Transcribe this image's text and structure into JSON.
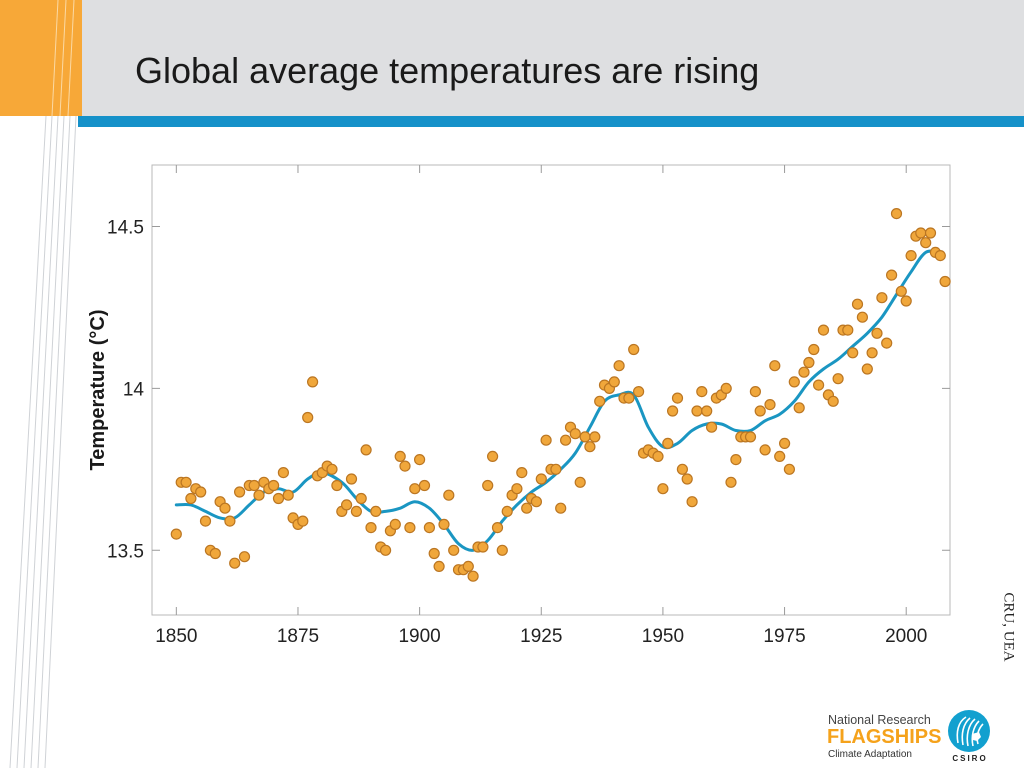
{
  "slide": {
    "title": "Global average temperatures are rising",
    "credit": "CRU, UEA",
    "colors": {
      "header_band": "#dedfe1",
      "orange_accent": "#f7a838",
      "blue_rule": "#1591c9"
    }
  },
  "logo": {
    "line1": "National Research",
    "line2": "FLAGSHIPS",
    "line3": "Climate Adaptation",
    "brand": "CSIRO",
    "icon": "csiro-globe-icon"
  },
  "chart_data": {
    "type": "scatter",
    "title": "",
    "xlabel": "",
    "ylabel": "Temperature (°C)",
    "xlim": [
      1845,
      2009
    ],
    "ylim": [
      13.3,
      14.69
    ],
    "xticks": [
      1850,
      1875,
      1900,
      1925,
      1950,
      1975,
      2000
    ],
    "yticks": [
      13.5,
      14,
      14.5
    ],
    "ytick_labels": [
      "13.5",
      "14",
      "14.5"
    ],
    "grid": false,
    "colors": {
      "points": "#f0a73b",
      "point_edge": "#bb7622",
      "smooth": "#1a96c2"
    },
    "series": [
      {
        "kind": "points",
        "x": [
          1850,
          1851,
          1852,
          1853,
          1854,
          1855,
          1856,
          1857,
          1858,
          1859,
          1860,
          1861,
          1862,
          1863,
          1864,
          1865,
          1866,
          1867,
          1868,
          1869,
          1870,
          1871,
          1872,
          1873,
          1874,
          1875,
          1876,
          1877,
          1878,
          1879,
          1880,
          1881,
          1882,
          1883,
          1884,
          1885,
          1886,
          1887,
          1888,
          1889,
          1890,
          1891,
          1892,
          1893,
          1894,
          1895,
          1896,
          1897,
          1898,
          1899,
          1900,
          1901,
          1902,
          1903,
          1904,
          1905,
          1906,
          1907,
          1908,
          1909,
          1910,
          1911,
          1912,
          1913,
          1914,
          1915,
          1916,
          1917,
          1918,
          1919,
          1920,
          1921,
          1922,
          1923,
          1924,
          1925,
          1926,
          1927,
          1928,
          1929,
          1930,
          1931,
          1932,
          1933,
          1934,
          1935,
          1936,
          1937,
          1938,
          1939,
          1940,
          1941,
          1942,
          1943,
          1944,
          1945,
          1946,
          1947,
          1948,
          1949,
          1950,
          1951,
          1952,
          1953,
          1954,
          1955,
          1956,
          1957,
          1958,
          1959,
          1960,
          1961,
          1962,
          1963,
          1964,
          1965,
          1966,
          1967,
          1968,
          1969,
          1970,
          1971,
          1972,
          1973,
          1974,
          1975,
          1976,
          1977,
          1978,
          1979,
          1980,
          1981,
          1982,
          1983,
          1984,
          1985,
          1986,
          1987,
          1988,
          1989,
          1990,
          1991,
          1992,
          1993,
          1994,
          1995,
          1996,
          1997,
          1998,
          1999,
          2000,
          2001,
          2002,
          2003,
          2004,
          2005,
          2006,
          2007,
          2008
        ],
        "y": [
          13.55,
          13.71,
          13.71,
          13.66,
          13.69,
          13.68,
          13.59,
          13.5,
          13.49,
          13.65,
          13.63,
          13.59,
          13.46,
          13.68,
          13.48,
          13.7,
          13.7,
          13.67,
          13.71,
          13.69,
          13.7,
          13.66,
          13.74,
          13.67,
          13.6,
          13.58,
          13.59,
          13.91,
          14.02,
          13.73,
          13.74,
          13.76,
          13.75,
          13.7,
          13.62,
          13.64,
          13.72,
          13.62,
          13.66,
          13.81,
          13.57,
          13.62,
          13.51,
          13.5,
          13.56,
          13.58,
          13.79,
          13.76,
          13.57,
          13.69,
          13.78,
          13.7,
          13.57,
          13.49,
          13.45,
          13.58,
          13.67,
          13.5,
          13.44,
          13.44,
          13.45,
          13.42,
          13.51,
          13.51,
          13.7,
          13.79,
          13.57,
          13.5,
          13.62,
          13.67,
          13.69,
          13.74,
          13.63,
          13.66,
          13.65,
          13.72,
          13.84,
          13.75,
          13.75,
          13.63,
          13.84,
          13.88,
          13.86,
          13.71,
          13.85,
          13.82,
          13.85,
          13.96,
          14.01,
          14.0,
          14.02,
          14.07,
          13.97,
          13.97,
          14.12,
          13.99,
          13.8,
          13.81,
          13.8,
          13.79,
          13.69,
          13.83,
          13.93,
          13.97,
          13.75,
          13.72,
          13.65,
          13.93,
          13.99,
          13.93,
          13.88,
          13.97,
          13.98,
          14.0,
          13.71,
          13.78,
          13.85,
          13.85,
          13.85,
          13.99,
          13.93,
          13.81,
          13.95,
          14.07,
          13.79,
          13.83,
          13.75,
          14.02,
          13.94,
          14.05,
          14.08,
          14.12,
          14.01,
          14.18,
          13.98,
          13.96,
          14.03,
          14.18,
          14.18,
          14.11,
          14.26,
          14.22,
          14.06,
          14.11,
          14.17,
          14.28,
          14.14,
          14.35,
          14.54,
          14.3,
          14.27,
          14.41,
          14.47,
          14.48,
          14.45,
          14.48,
          14.42,
          14.41,
          14.33
        ]
      },
      {
        "kind": "smooth",
        "x": [
          1850,
          1853,
          1856,
          1859,
          1862,
          1865,
          1868,
          1871,
          1874,
          1877,
          1880,
          1884,
          1887,
          1890,
          1893,
          1896,
          1899,
          1902,
          1905,
          1908,
          1911,
          1914,
          1917,
          1920,
          1923,
          1926,
          1929,
          1932,
          1935,
          1938,
          1941,
          1944,
          1947,
          1950,
          1953,
          1956,
          1959,
          1962,
          1965,
          1968,
          1971,
          1974,
          1977,
          1980,
          1983,
          1986,
          1989,
          1992,
          1995,
          1998,
          2001,
          2004,
          2007
        ],
        "y": [
          13.64,
          13.64,
          13.62,
          13.6,
          13.6,
          13.64,
          13.68,
          13.69,
          13.68,
          13.72,
          13.74,
          13.71,
          13.66,
          13.62,
          13.62,
          13.63,
          13.65,
          13.63,
          13.58,
          13.52,
          13.5,
          13.53,
          13.59,
          13.64,
          13.68,
          13.71,
          13.75,
          13.8,
          13.88,
          13.96,
          13.98,
          13.98,
          13.88,
          13.82,
          13.83,
          13.87,
          13.89,
          13.89,
          13.87,
          13.87,
          13.9,
          13.92,
          13.96,
          14.02,
          14.06,
          14.09,
          14.13,
          14.17,
          14.22,
          14.29,
          14.36,
          14.42,
          14.42
        ]
      }
    ]
  }
}
